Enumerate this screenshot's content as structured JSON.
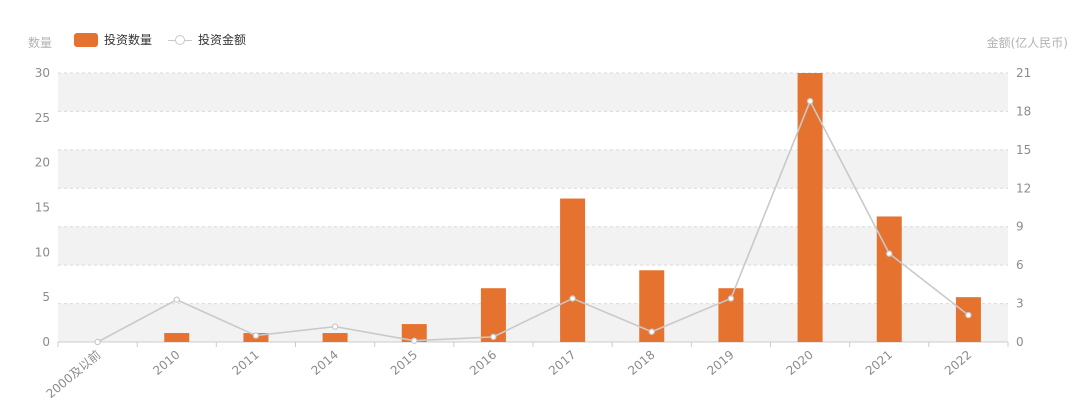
{
  "left_axis_title": "数量",
  "right_axis_title": "金额(亿人民币)",
  "legend": {
    "bar_label": "投资数量",
    "line_label": "投资金额"
  },
  "colors": {
    "bar": "#e6722f",
    "line": "#c9c9c9",
    "band": "#f2f2f2",
    "grid": "#d9d9d9",
    "tick_text": "#8c8c8c"
  },
  "chart_data": {
    "type": "bar",
    "categories": [
      "2000及以前",
      "2010",
      "2011",
      "2014",
      "2015",
      "2016",
      "2017",
      "2018",
      "2019",
      "2020",
      "2021",
      "2022"
    ],
    "series": [
      {
        "name": "投资数量",
        "type": "bar",
        "axis": "left",
        "values": [
          0,
          1,
          1,
          1,
          2,
          6,
          16,
          8,
          6,
          30,
          14,
          5
        ]
      },
      {
        "name": "投资金额",
        "type": "line",
        "axis": "right",
        "values": [
          0,
          3.3,
          0.5,
          1.2,
          0.1,
          0.4,
          3.4,
          0.8,
          3.4,
          18.8,
          6.9,
          2.1
        ]
      }
    ],
    "y_left": {
      "min": 0,
      "max": 30,
      "ticks": [
        "0",
        "5",
        "10",
        "15",
        "20",
        "25",
        "30"
      ]
    },
    "y_right": {
      "min": 0,
      "max": 21,
      "ticks": [
        "0",
        "3",
        "6",
        "9",
        "12",
        "15",
        "18",
        "21"
      ]
    },
    "legend_position": "top-left",
    "grid": true
  }
}
